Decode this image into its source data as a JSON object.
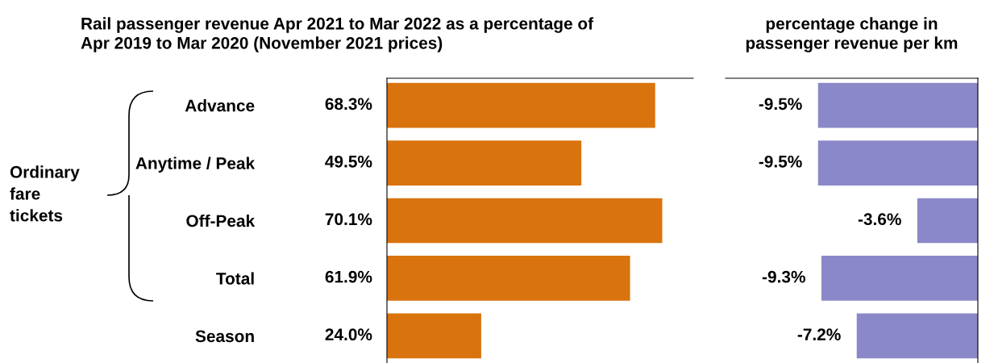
{
  "chart_data": [
    {
      "type": "bar",
      "orientation": "horizontal",
      "title": "Rail passenger revenue Apr 2021 to Mar 2022 as a percentage of\nApr 2019 to Mar 2020 (November 2021 prices)",
      "categories": [
        "Advance",
        "Anytime / Peak",
        "Off-Peak",
        "Total",
        "Season"
      ],
      "values": [
        68.3,
        49.5,
        70.1,
        61.9,
        24.0
      ],
      "value_labels": [
        "68.3%",
        "49.5%",
        "70.1%",
        "61.9%",
        "24.0%"
      ],
      "color": "#d9730d",
      "xlim": [
        0,
        78
      ],
      "tick_labels": "y",
      "grid": false,
      "annotations": [
        "Ordinary\nfare\ntickets"
      ]
    },
    {
      "type": "bar",
      "orientation": "horizontal",
      "title": "percentage change in\npassenger revenue per km",
      "categories": [
        null,
        null,
        null,
        null,
        null
      ],
      "values": [
        -9.5,
        -9.5,
        -3.6,
        -9.3,
        -7.2
      ],
      "value_labels": [
        "-9.5%",
        "-9.5%",
        "-3.6%",
        "-9.3%",
        "-7.2%"
      ],
      "color": "#8b88c9",
      "xlim": [
        -15,
        0
      ],
      "tick_labels": false,
      "grid": false
    }
  ]
}
